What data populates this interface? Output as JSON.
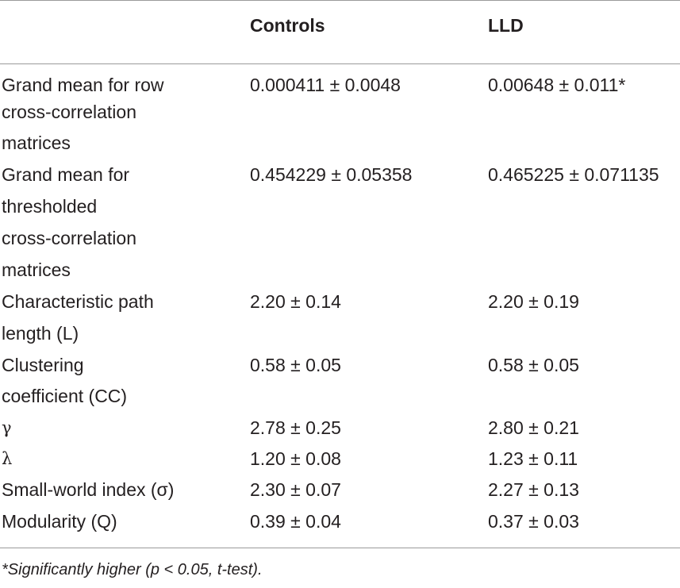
{
  "table": {
    "columns": [
      "",
      "Controls",
      "LLD"
    ],
    "rows": [
      {
        "label_lines": [
          "Grand mean for row",
          "cross-correlation",
          "matrices"
        ],
        "controls": "0.000411 ± 0.0048",
        "lld": "0.00648 ± 0.011*"
      },
      {
        "label_lines": [
          "Grand mean for",
          "thresholded",
          "cross-correlation",
          "matrices"
        ],
        "controls": "0.454229 ± 0.05358",
        "lld": "0.465225 ± 0.071135"
      },
      {
        "label_lines": [
          "Characteristic path",
          "length (L)"
        ],
        "controls": "2.20 ± 0.14",
        "lld": "2.20 ± 0.19"
      },
      {
        "label_lines": [
          "Clustering",
          "coefficient (CC)"
        ],
        "controls": "0.58 ± 0.05",
        "lld": "0.58 ± 0.05"
      },
      {
        "label_lines": [
          "γ"
        ],
        "controls": "2.78 ± 0.25",
        "lld": "2.80 ± 0.21"
      },
      {
        "label_lines": [
          "λ"
        ],
        "controls": "1.20 ± 0.08",
        "lld": "1.23 ± 0.11"
      },
      {
        "label_lines": [
          "Small-world index (σ)"
        ],
        "controls": "2.30 ± 0.07",
        "lld": "2.27 ± 0.13"
      },
      {
        "label_lines": [
          "Modularity (Q)"
        ],
        "controls": "0.39 ± 0.04",
        "lld": "0.37 ± 0.03"
      }
    ],
    "footnote": "*Significantly higher (p < 0.05, t-test)."
  }
}
